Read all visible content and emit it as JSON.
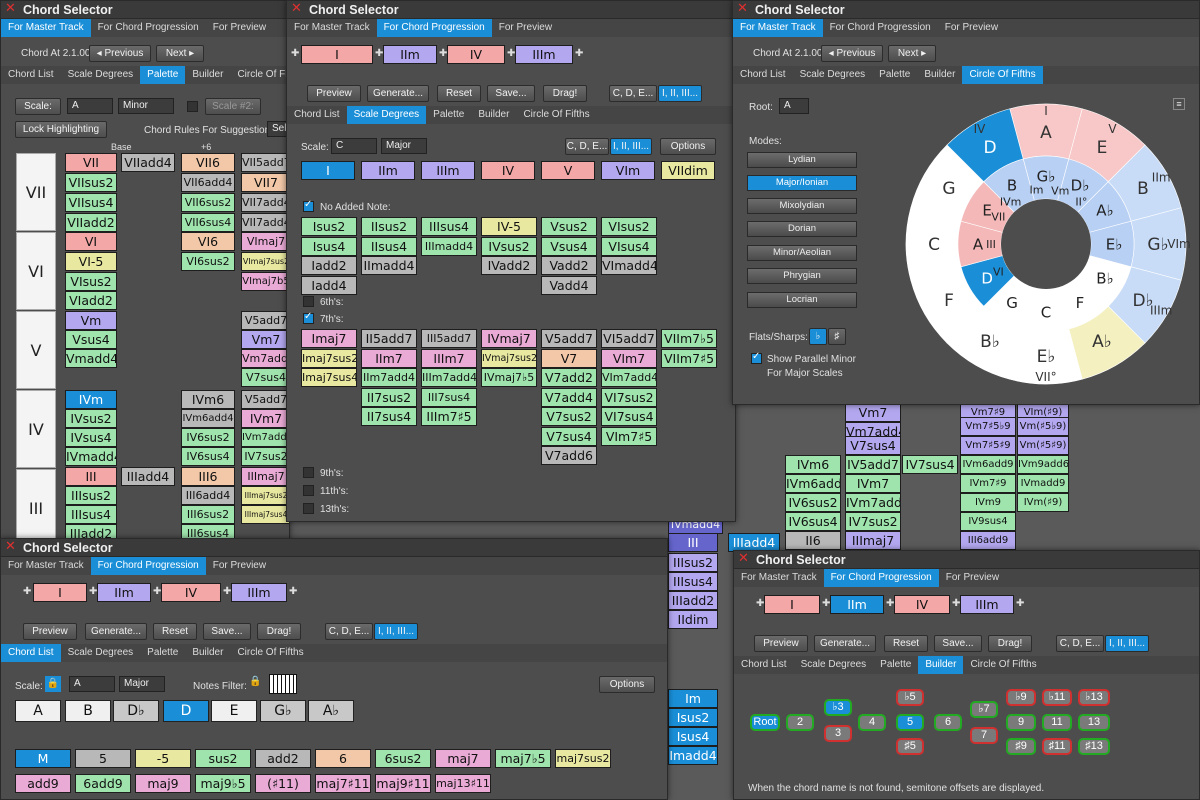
{
  "common": {
    "title": "Chord Selector",
    "tabs_top": [
      "For Master Track",
      "For Chord Progression",
      "For Preview"
    ],
    "tabs_nav": [
      "Chord List",
      "Scale Degrees",
      "Palette",
      "Builder",
      "Circle Of Fifths"
    ],
    "prog_buttons": [
      "Preview",
      "Generate...",
      "Reset",
      "Save...",
      "Drag!"
    ],
    "seg_letters": "C, D, E...",
    "seg_numerals": "I, II, III...",
    "progression": [
      "I",
      "IIm",
      "IV",
      "IIIm"
    ]
  },
  "w1": {
    "chord_at": "Chord At 2.1.00",
    "prev": "◂ Previous",
    "next": "Next ▸",
    "scale_label": "Scale:",
    "scale_key": "A",
    "scale_mode": "Minor",
    "scale2": "Scale #2:",
    "lock": "Lock Highlighting",
    "rules": "Chord Rules For Suggestions:",
    "rules_val": "Sel",
    "col_base": "Base",
    "col_p6": "+6",
    "rows": [
      "VII",
      "VI",
      "V",
      "IV",
      "III"
    ],
    "col_a": [
      "VII",
      "VIIsus2",
      "VIIsus4",
      "VIIadd2",
      "VI",
      "VI-5",
      "VIsus2",
      "VIadd2",
      "Vm",
      "Vsus4",
      "Vmadd4",
      "",
      "IVm",
      "IVsus2",
      "IVsus4",
      "IVmadd4",
      "III",
      "IIIsus2",
      "IIIsus4",
      "IIIadd2"
    ],
    "col_b": [
      "VIIadd4",
      "IIIadd4"
    ],
    "col_c": [
      "VII6",
      "VII6add4",
      "VII6sus2",
      "VII6sus4",
      "VI6",
      "VI6sus2",
      "IVm6",
      "IVm6add4",
      "IV6sus2",
      "IV6sus4",
      "III6",
      "III6add4",
      "III6sus2",
      "III6sus4"
    ],
    "col_d": [
      "VII5add7",
      "VII7",
      "VII7add4",
      "VII7add4",
      "VImaj7",
      "VImaj7sus2",
      "VImaj7b5",
      "V5add7",
      "Vm7",
      "Vm7add4",
      "V7sus4",
      "V5add7",
      "IVm7",
      "IVm7add4",
      "IV7sus2",
      "IIImaj7",
      "IIImaj7sus2",
      "IIImaj7sus4"
    ]
  },
  "w2": {
    "scale_label": "Scale:",
    "scale_key": "C",
    "scale_mode": "Major",
    "options": "Options",
    "degrees": [
      "I",
      "IIm",
      "IIIm",
      "IV",
      "V",
      "VIm",
      "VIIdim"
    ],
    "no_added": "No Added Note:",
    "sixths": "6th's:",
    "sevenths": "7th's:",
    "ninths": "9th's:",
    "elevenths": "11th's:",
    "thirteenths": "13th's:",
    "grid_added": [
      [
        "Isus2",
        "IIsus2",
        "IIIsus4",
        "IV-5",
        "Vsus2",
        "VIsus2"
      ],
      [
        "Isus4",
        "IIsus4",
        "IIImadd4",
        "IVsus2",
        "Vsus4",
        "VIsus4"
      ],
      [
        "Iadd2",
        "IImadd4",
        "",
        "IVadd2",
        "Vadd2",
        "VImadd4"
      ],
      [
        "Iadd4",
        "",
        "",
        "",
        "Vadd4",
        ""
      ]
    ],
    "grid_7th": [
      [
        "Imaj7",
        "II5add7",
        "III5add7",
        "IVmaj7",
        "V5add7",
        "VI5add7",
        "VIIm7♭5"
      ],
      [
        "Imaj7sus2",
        "IIm7",
        "IIIm7",
        "IVmaj7sus2",
        "V7",
        "VIm7",
        "VIIm7♯5"
      ],
      [
        "Imaj7sus4",
        "IIm7add4",
        "IIIm7add4",
        "IVmaj7♭5",
        "V7add2",
        "VIm7add4",
        ""
      ],
      [
        "",
        "II7sus2",
        "III7sus4",
        "",
        "V7add4",
        "VI7sus2",
        ""
      ],
      [
        "",
        "II7sus4",
        "IIIm7♯5",
        "",
        "V7sus2",
        "VI7sus4",
        ""
      ],
      [
        "",
        "",
        "",
        "",
        "V7sus4",
        "VIm7♯5",
        ""
      ],
      [
        "",
        "",
        "",
        "",
        "V7add6",
        "",
        ""
      ]
    ],
    "below": "IIIadd9"
  },
  "w3": {
    "root_label": "Root:",
    "root": "A",
    "modes_label": "Modes:",
    "modes": [
      "Lydian",
      "Major/Ionian",
      "Mixolydian",
      "Dorian",
      "Minor/Aeolian",
      "Phrygian",
      "Locrian"
    ],
    "flats_label": "Flats/Sharps:",
    "flat": "♭",
    "sharp": "♯",
    "parallel": "Show Parallel Minor",
    "parallel2": "For Major Scales",
    "outer_notes": [
      "A",
      "E",
      "B",
      "G♭",
      "D♭",
      "A♭",
      "E♭",
      "B♭",
      "F",
      "C",
      "G",
      "D"
    ],
    "middle_notes": [
      "G♭",
      "D♭",
      "A♭",
      "E♭",
      "B♭",
      "F",
      "C",
      "G",
      "D",
      "A",
      "E",
      "B"
    ],
    "degree_outer": [
      "I",
      "V",
      "IIm",
      "VIm",
      "IIIm",
      "VII°",
      "IV"
    ],
    "degree_inner": [
      "IVm",
      "Im",
      "Vm",
      "II°",
      "III",
      "VII",
      "VI"
    ]
  },
  "w4": {
    "scale_label": "Scale:",
    "scale_key": "A",
    "scale_mode": "Major",
    "notes_filter": "Notes Filter:",
    "options": "Options",
    "keys": [
      "A",
      "B",
      "D♭",
      "D",
      "E",
      "G♭",
      "A♭"
    ],
    "types_row1": [
      "M",
      "5",
      "-5",
      "sus2",
      "add2",
      "6",
      "6sus2",
      "maj7",
      "maj7♭5",
      "maj7sus2"
    ],
    "types_row2": [
      "add9",
      "6add9",
      "maj9",
      "maj9♭5",
      "(♯11)",
      "maj7♯11",
      "maj9♯11",
      "maj13♯11"
    ]
  },
  "w5": {
    "nodes": [
      "Root",
      "2",
      "♭3",
      "3",
      "4",
      "5",
      "♯5",
      "♭5",
      "6",
      "♭7",
      "7",
      "♭9",
      "9",
      "♯9",
      "♭11",
      "11",
      "♯11",
      "♭13",
      "13",
      "♯13"
    ],
    "footer": "When the chord name is not found, semitone offsets are displayed."
  },
  "bg": {
    "mid_a": [
      "IVm6",
      "IVm6add4",
      "IV6sus2",
      "IV6sus4",
      "II6"
    ],
    "mid_b": [
      "Vm7",
      "Vm7add4",
      "V7sus4",
      "IV5add7",
      "IVm7",
      "IVm7add4",
      "IV7sus2",
      "IIImaj7"
    ],
    "mid_c": [
      "IV7sus4"
    ],
    "mid_d": [
      "Vm7♯9",
      "Vm7♯5♭9",
      "Vm7♯5♯9",
      "IVm6add9",
      "IVm7♯9",
      "IVm9",
      "IV9sus4",
      "III6add9"
    ],
    "mid_e": [
      "VIm(♯9)",
      "Vm(♯5♭9)",
      "Vm(♯5♯9)",
      "IVm9add6",
      "IVmadd9",
      "IVm(♯9)"
    ],
    "left_col": [
      "IIIsus2",
      "IIIsus4",
      "IIIadd2",
      "IIdim",
      "III",
      "Im",
      "Isus2",
      "Isus4",
      "Imadd4"
    ],
    "iv_add4": "IIIadd4"
  },
  "colors": {
    "accent": "#1a8fd8",
    "pink": "#f4a7a7",
    "purple": "#b3a7ef",
    "green": "#9fe4ad",
    "yellow": "#e8e8a0"
  }
}
